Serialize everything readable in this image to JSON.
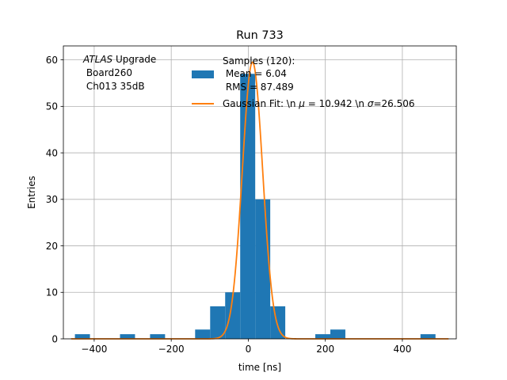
{
  "chart_data": {
    "type": "bar",
    "title": "Run 733",
    "xlabel": "time [ns]",
    "ylabel": "Entries",
    "xlim": [
      -480,
      540
    ],
    "ylim": [
      0,
      63
    ],
    "xticks": [
      -400,
      -200,
      0,
      200,
      400
    ],
    "yticks": [
      0,
      10,
      20,
      30,
      40,
      50,
      60
    ],
    "grid": true,
    "annotation": {
      "italic": "ATLAS",
      "first_line_rest": " Upgrade",
      "lines": [
        " Board260",
        " Ch013 35dB"
      ]
    },
    "histogram": {
      "name": "Samples (120):",
      "legend_lines": [
        " Mean = 6.04",
        " RMS = 87.489"
      ],
      "color": "#1f77b4",
      "bin_width": 39,
      "bins": [
        {
          "x": -450,
          "count": 1
        },
        {
          "x": -333,
          "count": 1
        },
        {
          "x": -255,
          "count": 1
        },
        {
          "x": -138,
          "count": 2
        },
        {
          "x": -99,
          "count": 7
        },
        {
          "x": -60,
          "count": 10
        },
        {
          "x": -21,
          "count": 57
        },
        {
          "x": 18,
          "count": 30
        },
        {
          "x": 57,
          "count": 7
        },
        {
          "x": 174,
          "count": 1
        },
        {
          "x": 213,
          "count": 2
        },
        {
          "x": 447,
          "count": 1
        }
      ]
    },
    "fit": {
      "name_prefix": "Gaussian Fit: \\n ",
      "mu_symbol": "μ",
      "mu_text": " = 10.942 \\n ",
      "sigma_symbol": "σ",
      "sigma_text": "=26.506",
      "mu": 10.942,
      "sigma": 26.506,
      "amplitude": 59.5,
      "color": "#ff7f0e"
    }
  }
}
